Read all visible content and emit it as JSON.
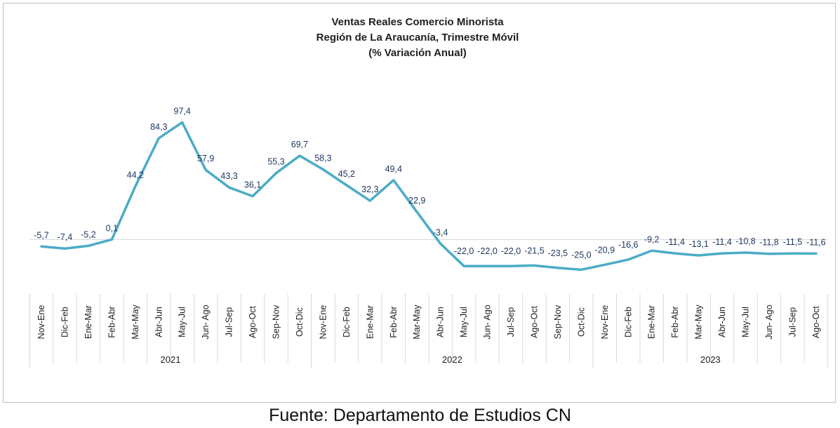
{
  "chart_data": {
    "type": "line",
    "title": [
      "Ventas Reales Comercio Minorista",
      "Región de La Araucanía, Trimestre Móvil",
      "(% Variación Anual)"
    ],
    "categories": [
      "Nov-Ene",
      "Dic-Feb",
      "Ene-Mar",
      "Feb-Abr",
      "Mar-May",
      "Abr-Jun",
      "May-Jul",
      "Jun- Ago",
      "Jul-Sep",
      "Ago-Oct",
      "Sep-Nov",
      "Oct-Dic",
      "Nov-Ene",
      "Dic-Feb",
      "Ene-Mar",
      "Feb-Abr",
      "Mar-May",
      "Abr-Jun",
      "May-Jul",
      "Jun- Ago",
      "Jul-Sep",
      "Ago-Oct",
      "Sep-Nov",
      "Oct-Dic",
      "Nov-Ene",
      "Dic-Feb",
      "Ene-Mar",
      "Feb-Abr",
      "Mar-May",
      "Abr-Jun",
      "May-Jul",
      "Jun- Ago",
      "Jul-Sep",
      "Ago-Oct"
    ],
    "values": [
      -5.7,
      -7.4,
      -5.2,
      0.1,
      44.2,
      84.3,
      97.4,
      57.9,
      43.3,
      36.1,
      55.3,
      69.7,
      58.3,
      45.2,
      32.3,
      49.4,
      22.9,
      -3.4,
      -22.0,
      -22.0,
      -22.0,
      -21.5,
      -23.5,
      -25.0,
      -20.9,
      -16.6,
      -9.2,
      -11.4,
      -13.1,
      -11.4,
      -10.8,
      -11.8,
      -11.5,
      -11.6
    ],
    "labels": [
      "-5,7",
      "-7,4",
      "-5,2",
      "0,1",
      "44,2",
      "84,3",
      "97,4",
      "57,9",
      "43,3",
      "36,1",
      "55,3",
      "69,7",
      "58,3",
      "45,2",
      "32,3",
      "49,4",
      "22,9",
      "-3,4",
      "-22,0",
      "-22,0",
      "-22,0",
      "-21,5",
      "-23,5",
      "-25,0",
      "-20,9",
      "-16,6",
      "-9,2",
      "-11,4",
      "-13,1",
      "-11,4",
      "-10,8",
      "-11,8",
      "-11,5",
      "-11,6"
    ],
    "groups": [
      {
        "label": "2021",
        "count": 12
      },
      {
        "label": "2022",
        "count": 12
      },
      {
        "label": "2023",
        "count": 10
      }
    ],
    "ylim": [
      -40,
      110
    ],
    "line_color": "#4BACC6",
    "label_color": "#1F3864",
    "grid": false,
    "legend": "none"
  },
  "source_note": "Fuente: Departamento de Estudios CN"
}
